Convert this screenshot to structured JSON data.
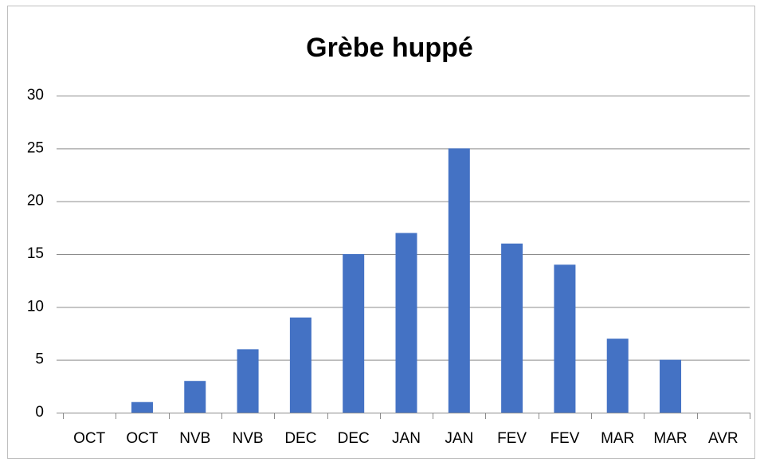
{
  "chart_data": {
    "type": "bar",
    "title": "Grèbe huppé",
    "categories": [
      "OCT",
      "OCT",
      "NVB",
      "NVB",
      "DEC",
      "DEC",
      "JAN",
      "JAN",
      "FEV",
      "FEV",
      "MAR",
      "MAR",
      "AVR"
    ],
    "values": [
      0,
      1,
      3,
      6,
      9,
      15,
      17,
      25,
      16,
      14,
      7,
      5,
      0
    ],
    "color": "#4472c4",
    "ylim": [
      0,
      30
    ],
    "yticks": [
      0,
      5,
      10,
      15,
      20,
      25,
      30
    ],
    "grid": true
  }
}
